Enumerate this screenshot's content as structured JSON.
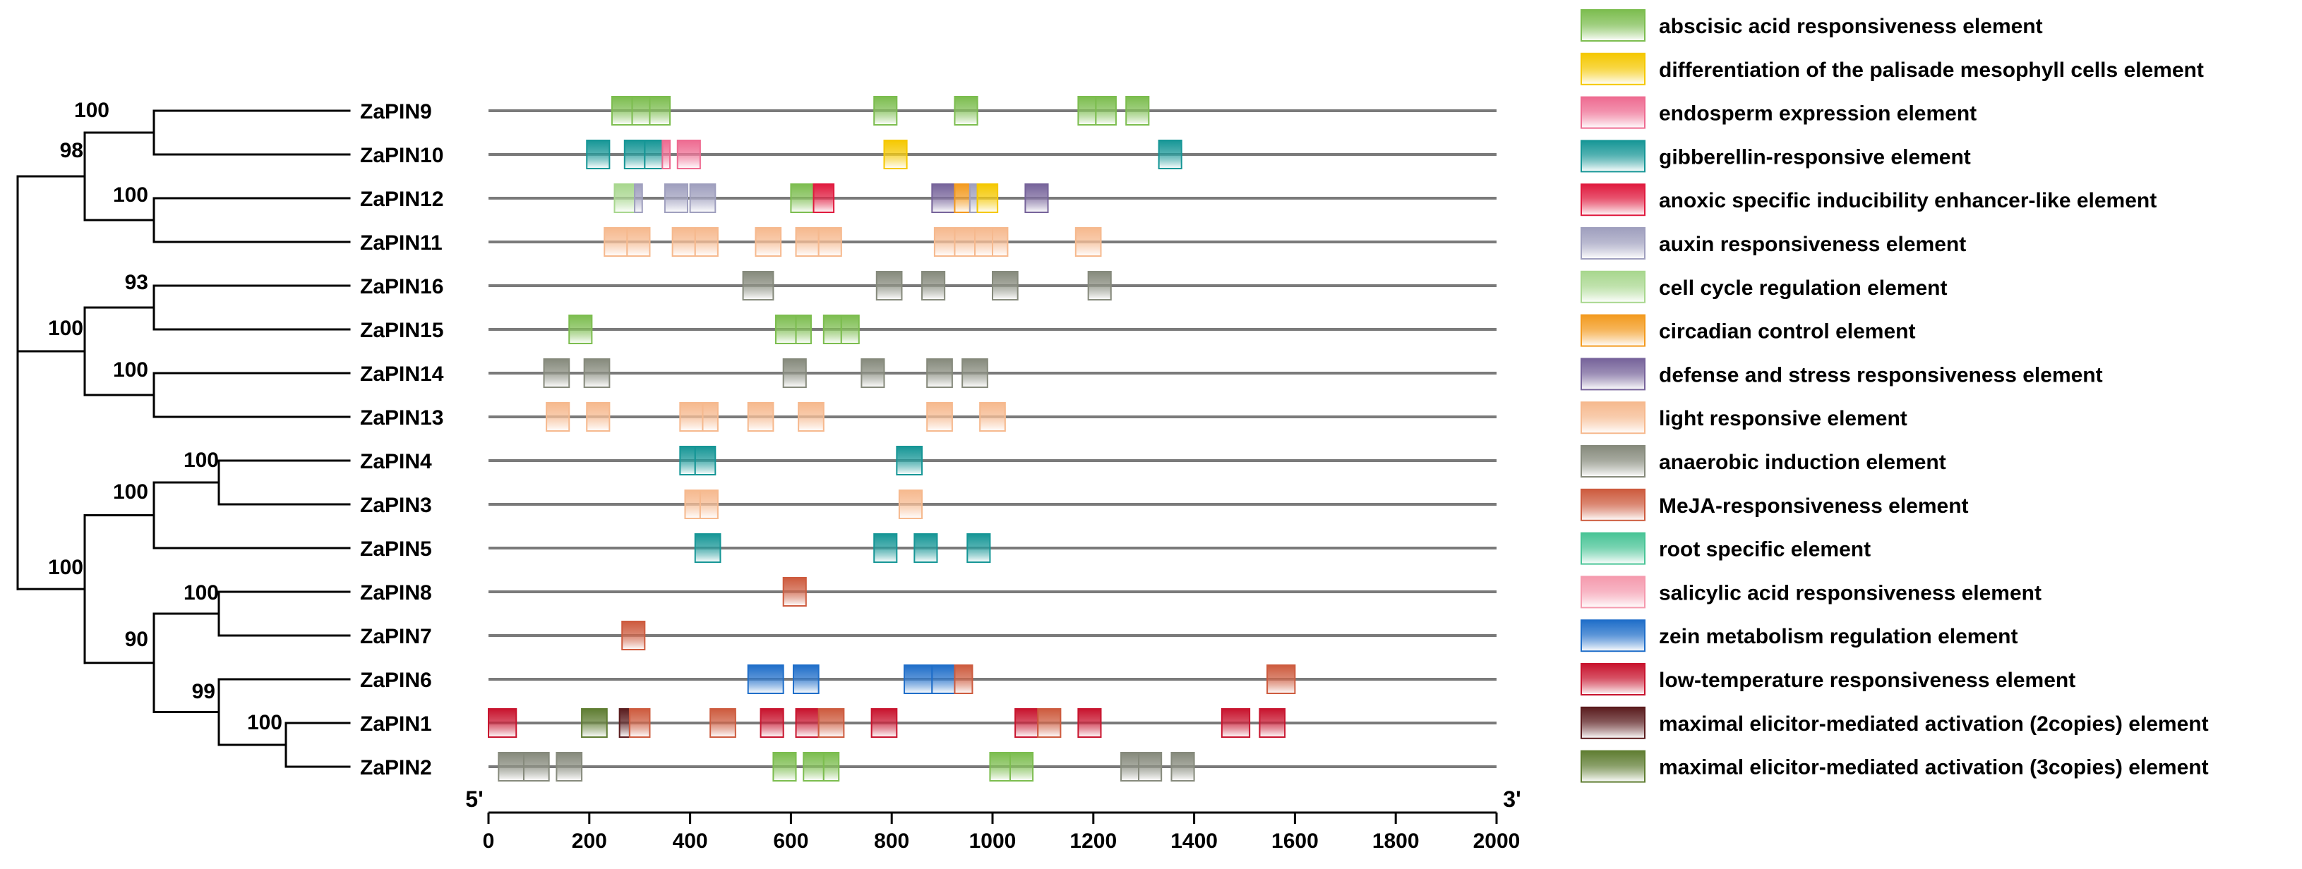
{
  "chart_data": {
    "type": "bar",
    "title": "",
    "xlabel": "",
    "ylabel": "",
    "xlim": [
      0,
      2000
    ],
    "x_ticks": [
      0,
      200,
      400,
      600,
      800,
      1000,
      1200,
      1400,
      1600,
      1800,
      2000
    ],
    "x_start_label": "5'",
    "x_end_label": "3'",
    "legend_position": "right",
    "elements": [
      {
        "key": "aba",
        "name": "abscisic acid responsiveness element",
        "color": "#7cbd4f"
      },
      {
        "key": "dpm",
        "name": "differentiation of the palisade mesophyll cells element",
        "color": "#f5c800"
      },
      {
        "key": "endo",
        "name": "endosperm expression element",
        "color": "#ee6b91"
      },
      {
        "key": "ga",
        "name": "gibberellin-responsive element",
        "color": "#169696"
      },
      {
        "key": "anoxic",
        "name": "anoxic specific inducibility enhancer-like element",
        "color": "#e01a3e"
      },
      {
        "key": "auxin",
        "name": "auxin responsiveness element",
        "color": "#9f9fbe"
      },
      {
        "key": "cell",
        "name": "cell cycle regulation element",
        "color": "#a8d78e"
      },
      {
        "key": "circ",
        "name": "circadian control element",
        "color": "#f39a1e"
      },
      {
        "key": "def",
        "name": "defense and stress responsiveness element",
        "color": "#76639a"
      },
      {
        "key": "light",
        "name": "light responsive element",
        "color": "#f6b98e"
      },
      {
        "key": "anaer",
        "name": "anaerobic induction element",
        "color": "#868a7c"
      },
      {
        "key": "meja",
        "name": "MeJA-responsiveness element",
        "color": "#cd5b3e"
      },
      {
        "key": "root",
        "name": "root specific element",
        "color": "#48c496"
      },
      {
        "key": "sa",
        "name": "salicylic acid responsiveness element",
        "color": "#f59aae"
      },
      {
        "key": "zein",
        "name": "zein metabolism regulation element",
        "color": "#1f6ec9"
      },
      {
        "key": "lowt",
        "name": "low-temperature responsiveness element",
        "color": "#c8142e"
      },
      {
        "key": "mea2",
        "name": "maximal elicitor-mediated activation (2copies) element",
        "color": "#5a1c1e"
      },
      {
        "key": "mea3",
        "name": "maximal elicitor-mediated activation (3copies) element",
        "color": "#5f7d32"
      }
    ],
    "genes": [
      {
        "name": "ZaPIN9",
        "motifs": [
          {
            "start": 245,
            "end": 285,
            "type": "aba"
          },
          {
            "start": 285,
            "end": 320,
            "type": "aba"
          },
          {
            "start": 320,
            "end": 360,
            "type": "aba"
          },
          {
            "start": 765,
            "end": 810,
            "type": "aba"
          },
          {
            "start": 925,
            "end": 970,
            "type": "aba"
          },
          {
            "start": 1170,
            "end": 1205,
            "type": "aba"
          },
          {
            "start": 1205,
            "end": 1245,
            "type": "aba"
          },
          {
            "start": 1265,
            "end": 1310,
            "type": "aba"
          }
        ]
      },
      {
        "name": "ZaPIN10",
        "motifs": [
          {
            "start": 195,
            "end": 240,
            "type": "ga"
          },
          {
            "start": 270,
            "end": 310,
            "type": "ga"
          },
          {
            "start": 310,
            "end": 345,
            "type": "ga"
          },
          {
            "start": 345,
            "end": 360,
            "type": "endo"
          },
          {
            "start": 375,
            "end": 420,
            "type": "endo"
          },
          {
            "start": 785,
            "end": 830,
            "type": "dpm"
          },
          {
            "start": 1330,
            "end": 1375,
            "type": "ga"
          }
        ]
      },
      {
        "name": "ZaPIN12",
        "motifs": [
          {
            "start": 250,
            "end": 290,
            "type": "cell"
          },
          {
            "start": 290,
            "end": 305,
            "type": "auxin"
          },
          {
            "start": 350,
            "end": 395,
            "type": "auxin"
          },
          {
            "start": 400,
            "end": 450,
            "type": "auxin"
          },
          {
            "start": 600,
            "end": 645,
            "type": "aba"
          },
          {
            "start": 645,
            "end": 685,
            "type": "anoxic"
          },
          {
            "start": 880,
            "end": 925,
            "type": "def"
          },
          {
            "start": 925,
            "end": 955,
            "type": "circ"
          },
          {
            "start": 955,
            "end": 970,
            "type": "auxin"
          },
          {
            "start": 970,
            "end": 1010,
            "type": "dpm"
          },
          {
            "start": 1065,
            "end": 1110,
            "type": "def"
          }
        ]
      },
      {
        "name": "ZaPIN11",
        "motifs": [
          {
            "start": 230,
            "end": 275,
            "type": "light"
          },
          {
            "start": 275,
            "end": 320,
            "type": "light"
          },
          {
            "start": 365,
            "end": 410,
            "type": "light"
          },
          {
            "start": 410,
            "end": 455,
            "type": "light"
          },
          {
            "start": 530,
            "end": 580,
            "type": "light"
          },
          {
            "start": 610,
            "end": 655,
            "type": "light"
          },
          {
            "start": 655,
            "end": 700,
            "type": "light"
          },
          {
            "start": 885,
            "end": 925,
            "type": "light"
          },
          {
            "start": 925,
            "end": 965,
            "type": "light"
          },
          {
            "start": 965,
            "end": 1000,
            "type": "light"
          },
          {
            "start": 1000,
            "end": 1030,
            "type": "light"
          },
          {
            "start": 1165,
            "end": 1215,
            "type": "light"
          }
        ]
      },
      {
        "name": "ZaPIN16",
        "motifs": [
          {
            "start": 505,
            "end": 565,
            "type": "anaer"
          },
          {
            "start": 770,
            "end": 820,
            "type": "anaer"
          },
          {
            "start": 860,
            "end": 905,
            "type": "anaer"
          },
          {
            "start": 1000,
            "end": 1050,
            "type": "anaer"
          },
          {
            "start": 1190,
            "end": 1235,
            "type": "anaer"
          }
        ]
      },
      {
        "name": "ZaPIN15",
        "motifs": [
          {
            "start": 160,
            "end": 205,
            "type": "aba"
          },
          {
            "start": 570,
            "end": 610,
            "type": "aba"
          },
          {
            "start": 610,
            "end": 640,
            "type": "aba"
          },
          {
            "start": 665,
            "end": 700,
            "type": "aba"
          },
          {
            "start": 700,
            "end": 735,
            "type": "aba"
          }
        ]
      },
      {
        "name": "ZaPIN14",
        "motifs": [
          {
            "start": 110,
            "end": 160,
            "type": "anaer"
          },
          {
            "start": 190,
            "end": 240,
            "type": "anaer"
          },
          {
            "start": 585,
            "end": 630,
            "type": "anaer"
          },
          {
            "start": 740,
            "end": 785,
            "type": "anaer"
          },
          {
            "start": 870,
            "end": 920,
            "type": "anaer"
          },
          {
            "start": 940,
            "end": 990,
            "type": "anaer"
          }
        ]
      },
      {
        "name": "ZaPIN13",
        "motifs": [
          {
            "start": 115,
            "end": 160,
            "type": "light"
          },
          {
            "start": 195,
            "end": 240,
            "type": "light"
          },
          {
            "start": 380,
            "end": 425,
            "type": "light"
          },
          {
            "start": 425,
            "end": 455,
            "type": "light"
          },
          {
            "start": 515,
            "end": 565,
            "type": "light"
          },
          {
            "start": 615,
            "end": 665,
            "type": "light"
          },
          {
            "start": 870,
            "end": 920,
            "type": "light"
          },
          {
            "start": 975,
            "end": 1025,
            "type": "light"
          }
        ]
      },
      {
        "name": "ZaPIN4",
        "motifs": [
          {
            "start": 380,
            "end": 410,
            "type": "ga"
          },
          {
            "start": 410,
            "end": 450,
            "type": "ga"
          },
          {
            "start": 810,
            "end": 860,
            "type": "ga"
          }
        ]
      },
      {
        "name": "ZaPIN3",
        "motifs": [
          {
            "start": 390,
            "end": 420,
            "type": "light"
          },
          {
            "start": 420,
            "end": 455,
            "type": "light"
          },
          {
            "start": 815,
            "end": 860,
            "type": "light"
          }
        ]
      },
      {
        "name": "ZaPIN5",
        "motifs": [
          {
            "start": 410,
            "end": 460,
            "type": "ga"
          },
          {
            "start": 765,
            "end": 810,
            "type": "ga"
          },
          {
            "start": 845,
            "end": 890,
            "type": "ga"
          },
          {
            "start": 950,
            "end": 995,
            "type": "ga"
          }
        ]
      },
      {
        "name": "ZaPIN8",
        "motifs": [
          {
            "start": 585,
            "end": 630,
            "type": "meja"
          }
        ]
      },
      {
        "name": "ZaPIN7",
        "motifs": [
          {
            "start": 265,
            "end": 310,
            "type": "meja"
          }
        ]
      },
      {
        "name": "ZaPIN6",
        "motifs": [
          {
            "start": 515,
            "end": 585,
            "type": "zein"
          },
          {
            "start": 605,
            "end": 655,
            "type": "zein"
          },
          {
            "start": 825,
            "end": 880,
            "type": "zein"
          },
          {
            "start": 880,
            "end": 925,
            "type": "zein"
          },
          {
            "start": 925,
            "end": 960,
            "type": "meja"
          },
          {
            "start": 1545,
            "end": 1600,
            "type": "meja"
          }
        ]
      },
      {
        "name": "ZaPIN1",
        "motifs": [
          {
            "start": 0,
            "end": 55,
            "type": "lowt"
          },
          {
            "start": 185,
            "end": 235,
            "type": "mea3"
          },
          {
            "start": 260,
            "end": 280,
            "type": "mea2"
          },
          {
            "start": 280,
            "end": 320,
            "type": "meja"
          },
          {
            "start": 440,
            "end": 490,
            "type": "meja"
          },
          {
            "start": 540,
            "end": 585,
            "type": "lowt"
          },
          {
            "start": 610,
            "end": 655,
            "type": "lowt"
          },
          {
            "start": 655,
            "end": 705,
            "type": "meja"
          },
          {
            "start": 760,
            "end": 810,
            "type": "lowt"
          },
          {
            "start": 1045,
            "end": 1090,
            "type": "lowt"
          },
          {
            "start": 1090,
            "end": 1135,
            "type": "meja"
          },
          {
            "start": 1170,
            "end": 1215,
            "type": "lowt"
          },
          {
            "start": 1455,
            "end": 1510,
            "type": "lowt"
          },
          {
            "start": 1530,
            "end": 1580,
            "type": "lowt"
          }
        ]
      },
      {
        "name": "ZaPIN2",
        "motifs": [
          {
            "start": 20,
            "end": 70,
            "type": "anaer"
          },
          {
            "start": 70,
            "end": 120,
            "type": "anaer"
          },
          {
            "start": 135,
            "end": 185,
            "type": "anaer"
          },
          {
            "start": 565,
            "end": 610,
            "type": "aba"
          },
          {
            "start": 625,
            "end": 665,
            "type": "aba"
          },
          {
            "start": 665,
            "end": 695,
            "type": "aba"
          },
          {
            "start": 995,
            "end": 1035,
            "type": "aba"
          },
          {
            "start": 1035,
            "end": 1080,
            "type": "aba"
          },
          {
            "start": 1255,
            "end": 1290,
            "type": "anaer"
          },
          {
            "start": 1290,
            "end": 1335,
            "type": "anaer"
          },
          {
            "start": 1355,
            "end": 1400,
            "type": "anaer"
          }
        ]
      }
    ],
    "tree": {
      "bootstrap_labels": [
        {
          "label": "100",
          "node": "n9_10"
        },
        {
          "label": "98",
          "node": "n9_11"
        },
        {
          "label": "100",
          "node": "n12_11"
        },
        {
          "label": "93",
          "node": "n16_15"
        },
        {
          "label": "100",
          "node": "n16_13"
        },
        {
          "label": "100",
          "node": "n14_13"
        },
        {
          "label": "100",
          "node": "n4_3"
        },
        {
          "label": "100",
          "node": "n4_5"
        },
        {
          "label": "100",
          "node": "root_lower"
        },
        {
          "label": "100",
          "node": "n8_7"
        },
        {
          "label": "90",
          "node": "n8_2"
        },
        {
          "label": "99",
          "node": "n6_2"
        },
        {
          "label": "100",
          "node": "n1_2"
        }
      ]
    }
  }
}
